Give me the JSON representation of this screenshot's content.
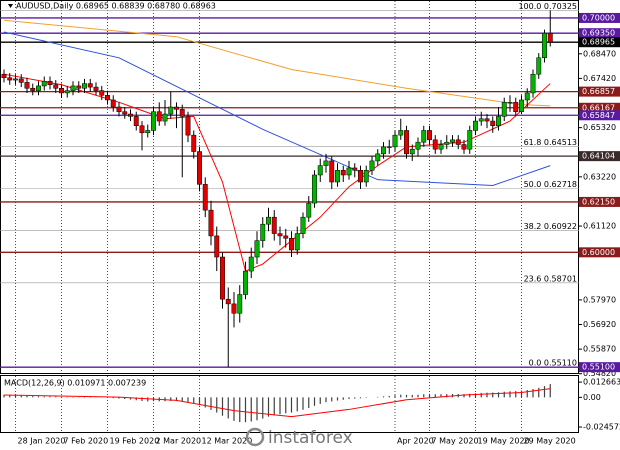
{
  "chart_data": {
    "type": "candlestick",
    "title": "AUDUSD,Daily 0.68965 0.68839 0.68780 0.68963",
    "categories": [
      null,
      null,
      "28 Jan 2020",
      null,
      null,
      null,
      null,
      null,
      null,
      null,
      "7 Feb 2020",
      null,
      null,
      null,
      null,
      null,
      null,
      null,
      "19 Feb 2020",
      null,
      null,
      null,
      null,
      null,
      null,
      null,
      "2 Mar 2020",
      null,
      null,
      null,
      null,
      null,
      null,
      null,
      "12 Mar 2020",
      null,
      null,
      null,
      null,
      null,
      null,
      null,
      null,
      null,
      null,
      null,
      null,
      null,
      null,
      null,
      null,
      null,
      null,
      null,
      null,
      null,
      null,
      null,
      null,
      null,
      null,
      null,
      null,
      null,
      null,
      null,
      null,
      null,
      "Apr 2020",
      null,
      null,
      null,
      null,
      null,
      "7 May 2020",
      null,
      null,
      null,
      null,
      null,
      null,
      null,
      "19 May 2020",
      null,
      null,
      null,
      null,
      null,
      null,
      null,
      "29 May 2020",
      null,
      null,
      null,
      null,
      null
    ],
    "open": [
      0.676,
      0.6745,
      0.6735,
      0.674,
      0.6725,
      0.67,
      0.669,
      0.671,
      0.673,
      0.6715,
      0.67,
      0.668,
      0.669,
      0.671,
      0.67,
      0.672,
      0.6705,
      0.669,
      0.667,
      0.665,
      0.662,
      0.66,
      0.659,
      0.658,
      0.654,
      0.651,
      0.652,
      0.66,
      0.656,
      0.659,
      0.662,
      0.661,
      0.658,
      0.65,
      0.643,
      0.629,
      0.618,
      0.607,
      0.598,
      0.58,
      0.578,
      0.574,
      0.582,
      0.592,
      0.598,
      0.605,
      0.612,
      0.615,
      0.608,
      0.607,
      0.606,
      0.601,
      0.608,
      0.615,
      0.621,
      0.633,
      0.637,
      0.639,
      0.63,
      0.635,
      0.633,
      0.636,
      0.635,
      0.63,
      0.635,
      0.639,
      0.642,
      0.645,
      0.645,
      0.65,
      0.652,
      0.642,
      0.644,
      0.647,
      0.652,
      0.648,
      0.644,
      0.646,
      0.647,
      0.648,
      0.646,
      0.644,
      0.652,
      0.656,
      0.657,
      0.656,
      0.654,
      0.658,
      0.664,
      0.664,
      0.66,
      0.665,
      0.668,
      0.676,
      0.683,
      0.6935
    ],
    "high": [
      0.678,
      0.6765,
      0.676,
      0.676,
      0.6745,
      0.672,
      0.673,
      0.675,
      0.675,
      0.6735,
      0.672,
      0.671,
      0.673,
      0.673,
      0.674,
      0.674,
      0.6725,
      0.671,
      0.669,
      0.667,
      0.664,
      0.662,
      0.661,
      0.66,
      0.656,
      0.6545,
      0.662,
      0.664,
      0.665,
      0.6685,
      0.664,
      0.663,
      0.66,
      0.652,
      0.645,
      0.632,
      0.622,
      0.611,
      0.6,
      0.585,
      0.583,
      0.586,
      0.596,
      0.602,
      0.609,
      0.615,
      0.619,
      0.618,
      0.611,
      0.61,
      0.609,
      0.611,
      0.617,
      0.624,
      0.635,
      0.64,
      0.642,
      0.641,
      0.638,
      0.637,
      0.639,
      0.638,
      0.637,
      0.637,
      0.641,
      0.644,
      0.647,
      0.648,
      0.652,
      0.657,
      0.654,
      0.646,
      0.649,
      0.654,
      0.654,
      0.65,
      0.648,
      0.65,
      0.65,
      0.65,
      0.648,
      0.654,
      0.658,
      0.66,
      0.659,
      0.658,
      0.662,
      0.666,
      0.667,
      0.666,
      0.667,
      0.67,
      0.678,
      0.685,
      0.695,
      0.7032
    ],
    "low": [
      0.6725,
      0.6715,
      0.6715,
      0.6705,
      0.668,
      0.667,
      0.667,
      0.669,
      0.6695,
      0.668,
      0.666,
      0.666,
      0.667,
      0.668,
      0.668,
      0.6685,
      0.667,
      0.665,
      0.663,
      0.66,
      0.658,
      0.657,
      0.656,
      0.652,
      0.6435,
      0.649,
      0.65,
      0.654,
      0.654,
      0.657,
      0.653,
      0.632,
      0.647,
      0.64,
      0.626,
      0.615,
      0.603,
      0.592,
      0.576,
      0.5511,
      0.568,
      0.57,
      0.58,
      0.589,
      0.595,
      0.602,
      0.609,
      0.605,
      0.603,
      0.602,
      0.598,
      0.599,
      0.606,
      0.613,
      0.619,
      0.63,
      0.634,
      0.627,
      0.628,
      0.63,
      0.631,
      0.632,
      0.627,
      0.628,
      0.633,
      0.637,
      0.64,
      0.642,
      0.643,
      0.648,
      0.64,
      0.639,
      0.641,
      0.645,
      0.646,
      0.642,
      0.642,
      0.644,
      0.645,
      0.644,
      0.642,
      0.642,
      0.65,
      0.654,
      0.653,
      0.651,
      0.652,
      0.656,
      0.66,
      0.658,
      0.659,
      0.662,
      0.666,
      0.674,
      0.681,
      0.6878
    ],
    "close": [
      0.6745,
      0.6735,
      0.674,
      0.6725,
      0.67,
      0.669,
      0.671,
      0.673,
      0.6715,
      0.67,
      0.668,
      0.669,
      0.671,
      0.67,
      0.672,
      0.6705,
      0.669,
      0.667,
      0.665,
      0.662,
      0.66,
      0.659,
      0.658,
      0.654,
      0.651,
      0.652,
      0.66,
      0.656,
      0.659,
      0.662,
      0.661,
      0.658,
      0.65,
      0.643,
      0.629,
      0.618,
      0.607,
      0.598,
      0.58,
      0.578,
      0.574,
      0.582,
      0.592,
      0.598,
      0.605,
      0.612,
      0.615,
      0.608,
      0.607,
      0.606,
      0.601,
      0.608,
      0.615,
      0.621,
      0.633,
      0.637,
      0.639,
      0.63,
      0.635,
      0.633,
      0.636,
      0.635,
      0.63,
      0.635,
      0.639,
      0.642,
      0.645,
      0.645,
      0.65,
      0.652,
      0.642,
      0.644,
      0.647,
      0.652,
      0.648,
      0.644,
      0.646,
      0.647,
      0.648,
      0.646,
      0.644,
      0.652,
      0.656,
      0.657,
      0.656,
      0.654,
      0.658,
      0.664,
      0.664,
      0.66,
      0.665,
      0.668,
      0.676,
      0.683,
      0.6935,
      0.6897
    ],
    "up_color": "#00b400",
    "down_color": "#e00000",
    "ylim": [
      0.54851,
      0.70723
    ],
    "yticks": [
      {
        "value": 0.6847,
        "label": "0.68470"
      },
      {
        "value": 0.6742,
        "label": "0.67420"
      },
      {
        "value": 0.6532,
        "label": "0.65320"
      },
      {
        "value": 0.6322,
        "label": "0.63220"
      },
      {
        "value": 0.6112,
        "label": "0.61120"
      },
      {
        "value": 0.5797,
        "label": "0.57970"
      },
      {
        "value": 0.5692,
        "label": "0.56920"
      },
      {
        "value": 0.5587,
        "label": "0.55870"
      },
      {
        "value": 0.5482,
        "label": "0.54820"
      }
    ],
    "levels": [
      {
        "value": 0.7,
        "label": "0.70000",
        "color": "#5a1aa0"
      },
      {
        "value": 0.6935,
        "label": "0.69350",
        "color": "#5a1aa0"
      },
      {
        "value": 0.68965,
        "label": "0.68965",
        "color": "#000000"
      },
      {
        "value": 0.66857,
        "label": "0.66857",
        "color": "#8b1a1a"
      },
      {
        "value": 0.66167,
        "label": "0.66167",
        "color": "#8b1a1a"
      },
      {
        "value": 0.65847,
        "label": "0.65847",
        "color": "#5a1aa0"
      },
      {
        "value": 0.64104,
        "label": "0.64104",
        "color": "#3a2a2a"
      },
      {
        "value": 0.6215,
        "label": "0.62150",
        "color": "#8b1a1a"
      },
      {
        "value": 0.6,
        "label": "0.60000",
        "color": "#8b1a1a"
      },
      {
        "value": 0.551,
        "label": "0.55100",
        "color": "#5a1aa0"
      }
    ],
    "fib": [
      {
        "value": 0.70325,
        "label": "100.0 0.70325"
      },
      {
        "value": 0.64513,
        "label": "61.8 0.64513"
      },
      {
        "value": 0.62718,
        "label": "50.0 0.62718"
      },
      {
        "value": 0.60922,
        "label": "38.2 0.60922"
      },
      {
        "value": 0.58701,
        "label": "23.6 0.58701"
      },
      {
        "value": 0.5511,
        "label": "0.0 0.55110"
      }
    ],
    "lines": [
      {
        "color": "#f0a030",
        "x": [
          0,
          30,
          50,
          70,
          90,
          95
        ],
        "values": [
          0.699,
          0.692,
          0.678,
          0.67,
          0.663,
          0.6625
        ]
      },
      {
        "color": "#3050e0",
        "x": [
          0,
          20,
          45,
          65,
          85,
          95
        ],
        "values": [
          0.694,
          0.683,
          0.6525,
          0.631,
          0.6285,
          0.637
        ]
      },
      {
        "color": "#ff0000",
        "x": [
          0,
          10,
          20,
          28,
          33,
          38,
          42,
          45,
          50,
          55,
          60,
          65,
          70,
          80,
          88,
          95
        ],
        "values": [
          0.676,
          0.6715,
          0.664,
          0.657,
          0.658,
          0.63,
          0.592,
          0.595,
          0.605,
          0.615,
          0.628,
          0.637,
          0.645,
          0.647,
          0.656,
          0.672
        ]
      }
    ],
    "watermark": "instaforex",
    "macd": {
      "title": "MACD(12,26,9) 0.010971 0.007239",
      "ylim": [
        -0.0287,
        0.0177
      ],
      "yticks": [
        {
          "value": 0.012663,
          "label": "0.012663"
        },
        {
          "value": 0,
          "label": "0.00"
        },
        {
          "value": -0.024572,
          "label": "-0.024572"
        }
      ],
      "color": "#404040",
      "histogram": [
        0.002,
        0.0018,
        0.0016,
        0.0014,
        0.0012,
        0.001,
        0.0009,
        0.0008,
        0.0007,
        0.0006,
        0.0004,
        0.0003,
        0.0003,
        0.0002,
        0.0003,
        0.0003,
        0.0002,
        0.0001,
        -0.0002,
        -0.0006,
        -0.001,
        -0.0014,
        -0.0018,
        -0.0024,
        -0.003,
        -0.0034,
        -0.0032,
        -0.0033,
        -0.0032,
        -0.003,
        -0.0031,
        -0.0035,
        -0.0042,
        -0.0052,
        -0.0066,
        -0.0084,
        -0.0104,
        -0.0126,
        -0.0152,
        -0.0175,
        -0.0195,
        -0.0205,
        -0.0206,
        -0.02,
        -0.019,
        -0.0176,
        -0.016,
        -0.015,
        -0.014,
        -0.0132,
        -0.0126,
        -0.0116,
        -0.0103,
        -0.0088,
        -0.007,
        -0.0054,
        -0.004,
        -0.0034,
        -0.0026,
        -0.002,
        -0.0014,
        -0.001,
        -0.0008,
        -0.0004,
        0.0,
        0.0004,
        0.0008,
        0.0012,
        0.0017,
        0.0022,
        0.002,
        0.002,
        0.0022,
        0.0026,
        0.0027,
        0.0026,
        0.0026,
        0.0027,
        0.0028,
        0.0028,
        0.0027,
        0.003,
        0.0034,
        0.0037,
        0.0039,
        0.004,
        0.0042,
        0.0047,
        0.005,
        0.0052,
        0.0056,
        0.0061,
        0.0069,
        0.0079,
        0.0093,
        0.011
      ],
      "signal": {
        "color": "#ff0000",
        "x": [
          0,
          20,
          30,
          40,
          50,
          60,
          70,
          80,
          90,
          95
        ],
        "values": [
          0.002,
          0.0002,
          -0.0025,
          -0.011,
          -0.016,
          -0.01,
          -0.002,
          0.002,
          0.004,
          0.0072
        ]
      }
    }
  }
}
